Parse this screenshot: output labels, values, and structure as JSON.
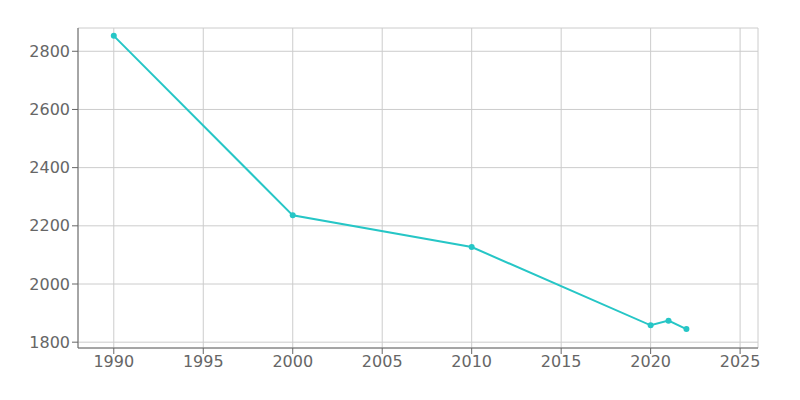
{
  "chart_data": {
    "type": "line",
    "x": [
      1990,
      2000,
      2010,
      2020,
      2021,
      2022
    ],
    "values": [
      2853,
      2236,
      2127,
      1858,
      1874,
      1845
    ],
    "color": "#26C6C6",
    "marker": "circle",
    "xlim": [
      1988,
      2026
    ],
    "ylim": [
      1780,
      2880
    ],
    "xticks": [
      1990,
      1995,
      2000,
      2005,
      2010,
      2015,
      2020,
      2025
    ],
    "yticks": [
      1800,
      2000,
      2200,
      2400,
      2600,
      2800
    ],
    "grid": true
  }
}
